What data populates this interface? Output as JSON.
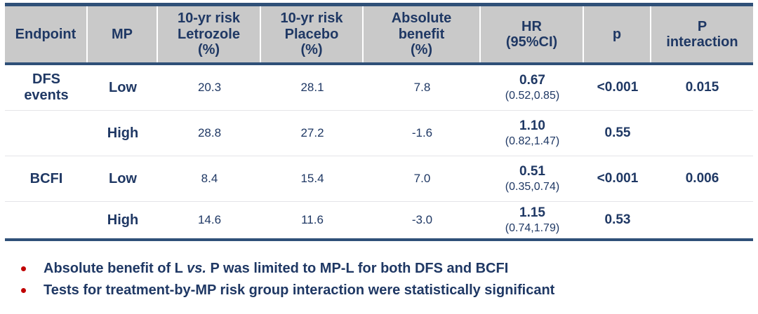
{
  "colors": {
    "text_navy": "#1F3864",
    "line_navy": "#2F5078",
    "header_bg": "#C9C9C9",
    "row_divider": "#E4E4E8",
    "bullet_red": "#C00000"
  },
  "table": {
    "headers": [
      "Endpoint",
      "MP",
      "10-yr risk\nLetrozole\n(%)",
      "10-yr risk\nPlacebo\n(%)",
      "Absolute\nbenefit\n(%)",
      "HR\n(95%CI)",
      "p",
      "P\ninteraction"
    ],
    "rows": [
      {
        "endpoint": "DFS\nevents",
        "mp": "Low",
        "letrozole": "20.3",
        "placebo": "28.1",
        "benefit": "7.8",
        "hr": "0.67",
        "ci": "(0.52,0.85)",
        "p": "<0.001",
        "p_interaction": "0.015"
      },
      {
        "endpoint": "",
        "mp": "High",
        "letrozole": "28.8",
        "placebo": "27.2",
        "benefit": "-1.6",
        "hr": "1.10",
        "ci": "(0.82,1.47)",
        "p": "0.55",
        "p_interaction": ""
      },
      {
        "endpoint": "BCFI",
        "mp": "Low",
        "letrozole": "8.4",
        "placebo": "15.4",
        "benefit": "7.0",
        "hr": "0.51",
        "ci": "(0.35,0.74)",
        "p": "<0.001",
        "p_interaction": "0.006"
      },
      {
        "endpoint": "",
        "mp": "High",
        "letrozole": "14.6",
        "placebo": "11.6",
        "benefit": "-3.0",
        "hr": "1.15",
        "ci": "(0.74,1.79)",
        "p": "0.53",
        "p_interaction": ""
      }
    ]
  },
  "bullets": [
    {
      "pre": "Absolute benefit of L ",
      "italic": "vs.",
      "post": " P was limited to MP-L for both DFS and BCFI"
    },
    {
      "pre": "Tests for treatment-by-MP risk group interaction were statistically significant",
      "italic": "",
      "post": ""
    }
  ]
}
